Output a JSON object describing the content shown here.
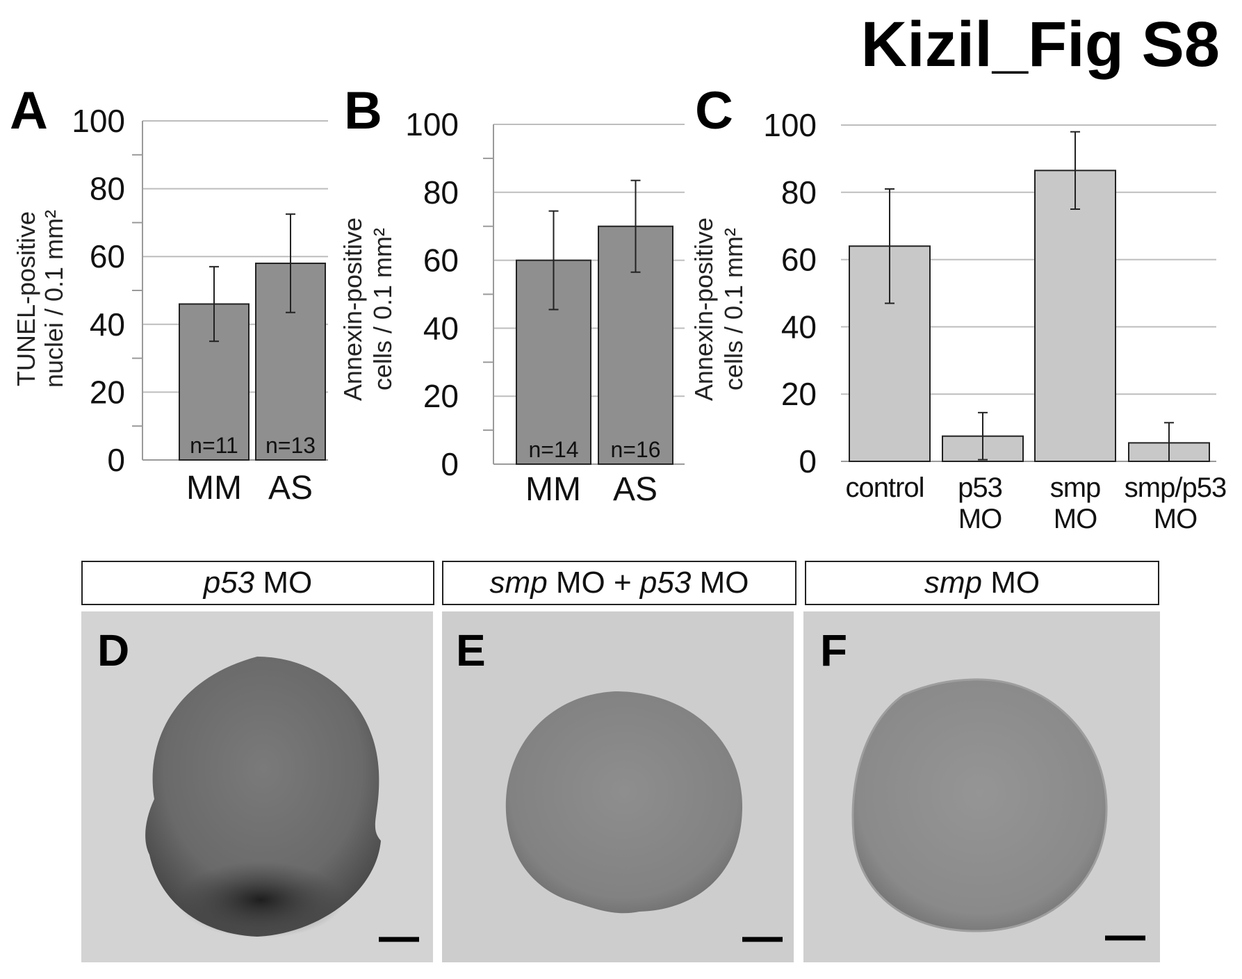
{
  "figure_title": "Kizil_Fig S8",
  "colors": {
    "bar_dark": "#8f8f8f",
    "bar_light": "#c8c8c8",
    "grid": "#bdbdbd",
    "axis": "#9a9a9a"
  },
  "chart_data": [
    {
      "panel": "A",
      "type": "bar",
      "ylabel": [
        "TUNEL-positive",
        "nuclei / 0.1 mm²"
      ],
      "categories": [
        "MM",
        "AS"
      ],
      "values": [
        46,
        58
      ],
      "errors": [
        11,
        14.5
      ],
      "bar_labels": [
        "n=11",
        "n=13"
      ],
      "ylim": [
        0,
        100
      ],
      "yticks": [
        0,
        20,
        40,
        60,
        80,
        100
      ],
      "grid": true
    },
    {
      "panel": "B",
      "type": "bar",
      "ylabel": [
        "Annexin-positive",
        "cells / 0.1 mm²"
      ],
      "categories": [
        "MM",
        "AS"
      ],
      "values": [
        60,
        70
      ],
      "errors": [
        14.5,
        13.5
      ],
      "bar_labels": [
        "n=14",
        "n=16"
      ],
      "ylim": [
        0,
        100
      ],
      "yticks": [
        0,
        20,
        40,
        60,
        80,
        100
      ],
      "grid": true
    },
    {
      "panel": "C",
      "type": "bar",
      "ylabel": [
        "Annexin-positive",
        "cells / 0.1 mm²"
      ],
      "categories": [
        [
          "control"
        ],
        [
          "p53",
          "MO"
        ],
        [
          "smp",
          "MO"
        ],
        [
          "smp/p53",
          "MO"
        ]
      ],
      "values": [
        64,
        7.5,
        86.5,
        5.5
      ],
      "errors": [
        17,
        7,
        11.5,
        6
      ],
      "ylim": [
        0,
        100
      ],
      "yticks": [
        0,
        20,
        40,
        60,
        80,
        100
      ],
      "grid": true
    }
  ],
  "image_panels": [
    {
      "letter": "D",
      "header": [
        {
          "text": "p53",
          "italic": true
        },
        {
          "text": " MO",
          "italic": false
        }
      ]
    },
    {
      "letter": "E",
      "header": [
        {
          "text": "smp",
          "italic": true
        },
        {
          "text": " MO + ",
          "italic": false
        },
        {
          "text": "p53",
          "italic": true
        },
        {
          "text": " MO",
          "italic": false
        }
      ]
    },
    {
      "letter": "F",
      "header": [
        {
          "text": "smp",
          "italic": true
        },
        {
          "text": " MO",
          "italic": false
        }
      ]
    }
  ]
}
